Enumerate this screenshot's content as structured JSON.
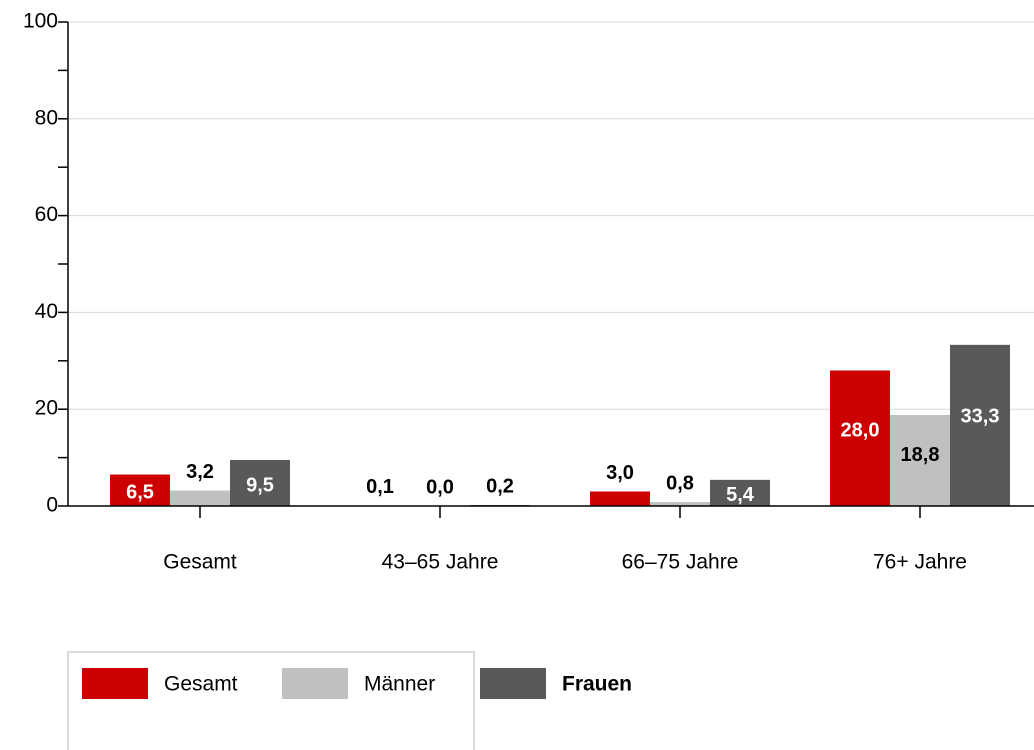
{
  "chart_data": {
    "type": "bar",
    "categories": [
      "Gesamt",
      "43–65 Jahre",
      "66–75 Jahre",
      "76+ Jahre"
    ],
    "series": [
      {
        "name": "Gesamt",
        "color": "#cc0000",
        "values": [
          6.5,
          0.1,
          3.0,
          28.0
        ],
        "value_labels": [
          "6,5",
          "0,1",
          "3,0",
          "28,0"
        ]
      },
      {
        "name": "Männer",
        "color": "#c0c0c0",
        "values": [
          3.2,
          0.0,
          0.8,
          18.8
        ],
        "value_labels": [
          "3,2",
          "0,0",
          "0,8",
          "18,8"
        ]
      },
      {
        "name": "Frauen",
        "color": "#595959",
        "values": [
          9.5,
          0.2,
          5.4,
          33.3
        ],
        "value_labels": [
          "9,5",
          "0,2",
          "5,4",
          "33,3"
        ]
      }
    ],
    "ylim": [
      0,
      100
    ],
    "yticks": [
      0,
      20,
      40,
      60,
      80,
      100
    ],
    "yminor_ticks": [
      10,
      30,
      50,
      70,
      90
    ],
    "grid": true
  }
}
